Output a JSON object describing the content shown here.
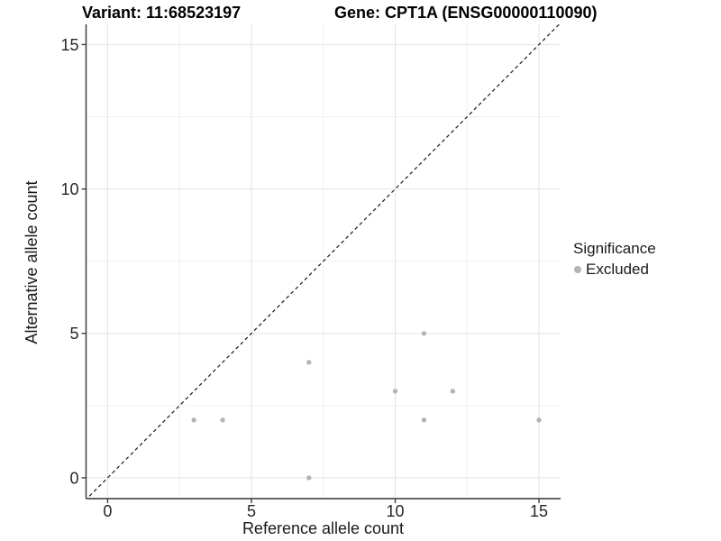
{
  "header": {
    "variant_title": "Variant: 11:68523197",
    "gene_title": "Gene: CPT1A (ENSG00000110090)"
  },
  "axes": {
    "x_label": "Reference allele count",
    "y_label": "Alternative allele count"
  },
  "legend": {
    "title": "Significance",
    "items": [
      {
        "label": "Excluded",
        "color": "#b4b4b4"
      }
    ]
  },
  "colors": {
    "point": "#b4b4b4",
    "grid_major": "#e3e3e3",
    "grid_minor": "#f0f0f0",
    "axis_line": "#333333",
    "tick_label": "#262626",
    "identity_line": "#1a1a1a",
    "background": "#ffffff"
  },
  "chart_data": {
    "type": "scatter",
    "title": "Variant: 11:68523197",
    "title2": "Gene: CPT1A (ENSG00000110090)",
    "xlabel": "Reference allele count",
    "ylabel": "Alternative allele count",
    "xlim": [
      -0.75,
      15.75
    ],
    "ylim": [
      -0.72,
      15.7
    ],
    "x_ticks": [
      0,
      5,
      10,
      15
    ],
    "y_ticks": [
      0,
      5,
      10,
      15
    ],
    "x_minor_gridlines": [
      2.5,
      7.5,
      12.5
    ],
    "y_minor_gridlines": [
      2.5,
      7.5,
      12.5
    ],
    "grid": true,
    "legend_position": "right",
    "series": [
      {
        "name": "Excluded",
        "color": "#b4b4b4",
        "points": [
          [
            3,
            2
          ],
          [
            4,
            2
          ],
          [
            7,
            0
          ],
          [
            7,
            4
          ],
          [
            10,
            3
          ],
          [
            11,
            2
          ],
          [
            11,
            5
          ],
          [
            12,
            3
          ],
          [
            15,
            2
          ]
        ]
      }
    ],
    "reference_line": {
      "type": "identity",
      "slope": 1,
      "intercept": 0,
      "style": "dashed",
      "color": "#1a1a1a"
    }
  }
}
